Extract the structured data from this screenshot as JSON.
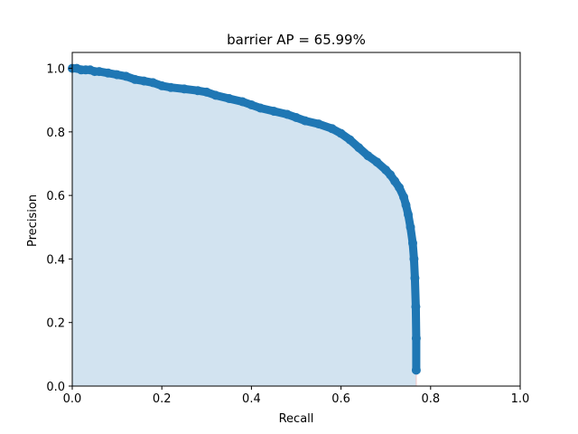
{
  "chart_data": {
    "type": "area",
    "title": "barrier AP = 65.99%",
    "xlabel": "Recall",
    "ylabel": "Precision",
    "xlim": [
      0,
      1
    ],
    "ylim": [
      0,
      1.05
    ],
    "xticks": [
      "0.0",
      "0.2",
      "0.4",
      "0.6",
      "0.8",
      "1.0"
    ],
    "yticks": [
      "0.0",
      "0.2",
      "0.4",
      "0.6",
      "0.8",
      "1.0"
    ],
    "grid": false,
    "colors": {
      "line": "#1f77b4",
      "fill": "#d2e3f0"
    },
    "series": [
      {
        "x": [
          0.0,
          0.01,
          0.02,
          0.03,
          0.04,
          0.05,
          0.06,
          0.08,
          0.1,
          0.12,
          0.14,
          0.16,
          0.18,
          0.2,
          0.22,
          0.25,
          0.28,
          0.3,
          0.32,
          0.35,
          0.38,
          0.4,
          0.42,
          0.45,
          0.48,
          0.5,
          0.52,
          0.55,
          0.58,
          0.6,
          0.62,
          0.64,
          0.66,
          0.68,
          0.7,
          0.71,
          0.72,
          0.73,
          0.74,
          0.745,
          0.75,
          0.755,
          0.76,
          0.763,
          0.765,
          0.767,
          0.768,
          0.768
        ],
        "y": [
          1.0,
          1.0,
          0.995,
          0.995,
          0.995,
          0.99,
          0.99,
          0.985,
          0.98,
          0.975,
          0.965,
          0.96,
          0.955,
          0.945,
          0.94,
          0.935,
          0.93,
          0.925,
          0.915,
          0.905,
          0.895,
          0.885,
          0.875,
          0.865,
          0.855,
          0.845,
          0.835,
          0.825,
          0.81,
          0.795,
          0.775,
          0.75,
          0.725,
          0.705,
          0.68,
          0.665,
          0.645,
          0.625,
          0.595,
          0.57,
          0.54,
          0.5,
          0.45,
          0.4,
          0.34,
          0.25,
          0.15,
          0.05
        ]
      }
    ]
  }
}
